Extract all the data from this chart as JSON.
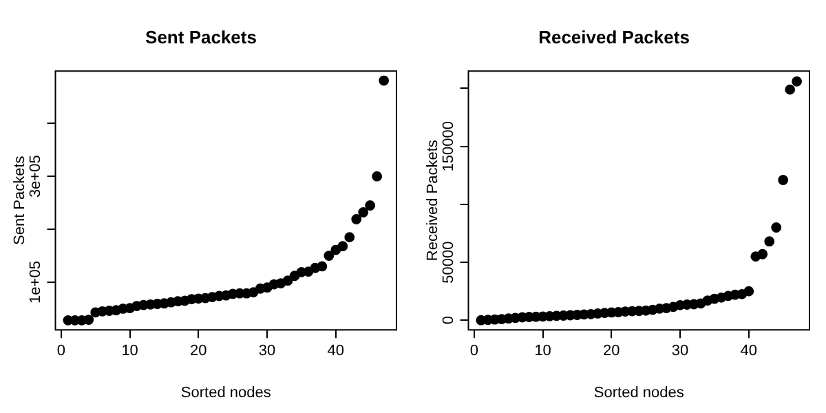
{
  "chart_data": [
    {
      "type": "scatter",
      "title": "Sent Packets",
      "xlabel": "Sorted nodes",
      "ylabel": "Sent Packets",
      "marker": "circle",
      "grid": false,
      "legend": false,
      "xlim": [
        -0.84,
        48.84
      ],
      "xticks": [
        0,
        10,
        20,
        30,
        40
      ],
      "ylim": [
        10000,
        499000
      ],
      "yticks": [
        {
          "value": 100000,
          "label": "1e+05"
        },
        {
          "value": 200000,
          "label": null
        },
        {
          "value": 300000,
          "label": "3e+05"
        },
        {
          "value": 400000,
          "label": null
        }
      ],
      "series": [
        {
          "color": "#000000",
          "x": [
            1,
            2,
            3,
            4,
            5,
            6,
            7,
            8,
            9,
            10,
            11,
            12,
            13,
            14,
            15,
            16,
            17,
            18,
            19,
            20,
            21,
            22,
            23,
            24,
            25,
            26,
            27,
            28,
            29,
            30,
            31,
            32,
            33,
            34,
            35,
            36,
            37,
            38,
            39,
            40,
            41,
            42,
            43,
            44,
            45,
            46,
            47
          ],
          "values": [
            28000,
            28000,
            28000,
            29000,
            43000,
            45000,
            46000,
            47000,
            50000,
            51000,
            55000,
            57000,
            58000,
            59000,
            60000,
            62000,
            64000,
            65000,
            68000,
            69000,
            70000,
            72000,
            74000,
            75000,
            78000,
            79000,
            79000,
            81000,
            88000,
            90000,
            96000,
            98000,
            103000,
            112000,
            119000,
            120000,
            127000,
            130000,
            150000,
            161000,
            168000,
            185000,
            219000,
            232000,
            245000,
            300000,
            481000
          ]
        }
      ]
    },
    {
      "type": "scatter",
      "title": "Received Packets",
      "xlabel": "Sorted nodes",
      "ylabel": "Received Packets",
      "marker": "circle",
      "grid": false,
      "legend": false,
      "xlim": [
        -0.84,
        48.84
      ],
      "xticks": [
        0,
        10,
        20,
        30,
        40
      ],
      "ylim": [
        -8300,
        215000
      ],
      "yticks": [
        0,
        50000,
        {
          "value": 100000,
          "label": null
        },
        150000,
        {
          "value": 200000,
          "label": null
        }
      ],
      "series": [
        {
          "color": "#000000",
          "x": [
            1,
            2,
            3,
            4,
            5,
            6,
            7,
            8,
            9,
            10,
            11,
            12,
            13,
            14,
            15,
            16,
            17,
            18,
            19,
            20,
            21,
            22,
            23,
            24,
            25,
            26,
            27,
            28,
            29,
            30,
            31,
            32,
            33,
            34,
            35,
            36,
            37,
            38,
            39,
            40,
            41,
            42,
            43,
            44,
            45,
            46,
            47
          ],
          "values": [
            0,
            300,
            600,
            1000,
            1500,
            2000,
            2500,
            2800,
            3000,
            3200,
            3500,
            3800,
            4000,
            4300,
            4600,
            5000,
            5300,
            5800,
            6300,
            6700,
            7000,
            7500,
            7800,
            8000,
            8300,
            9000,
            10000,
            10500,
            11500,
            13000,
            13500,
            13800,
            14500,
            17000,
            18500,
            19500,
            21000,
            22000,
            22500,
            25000,
            55000,
            57000,
            68000,
            80000,
            121000,
            199000,
            206000
          ]
        }
      ]
    }
  ]
}
